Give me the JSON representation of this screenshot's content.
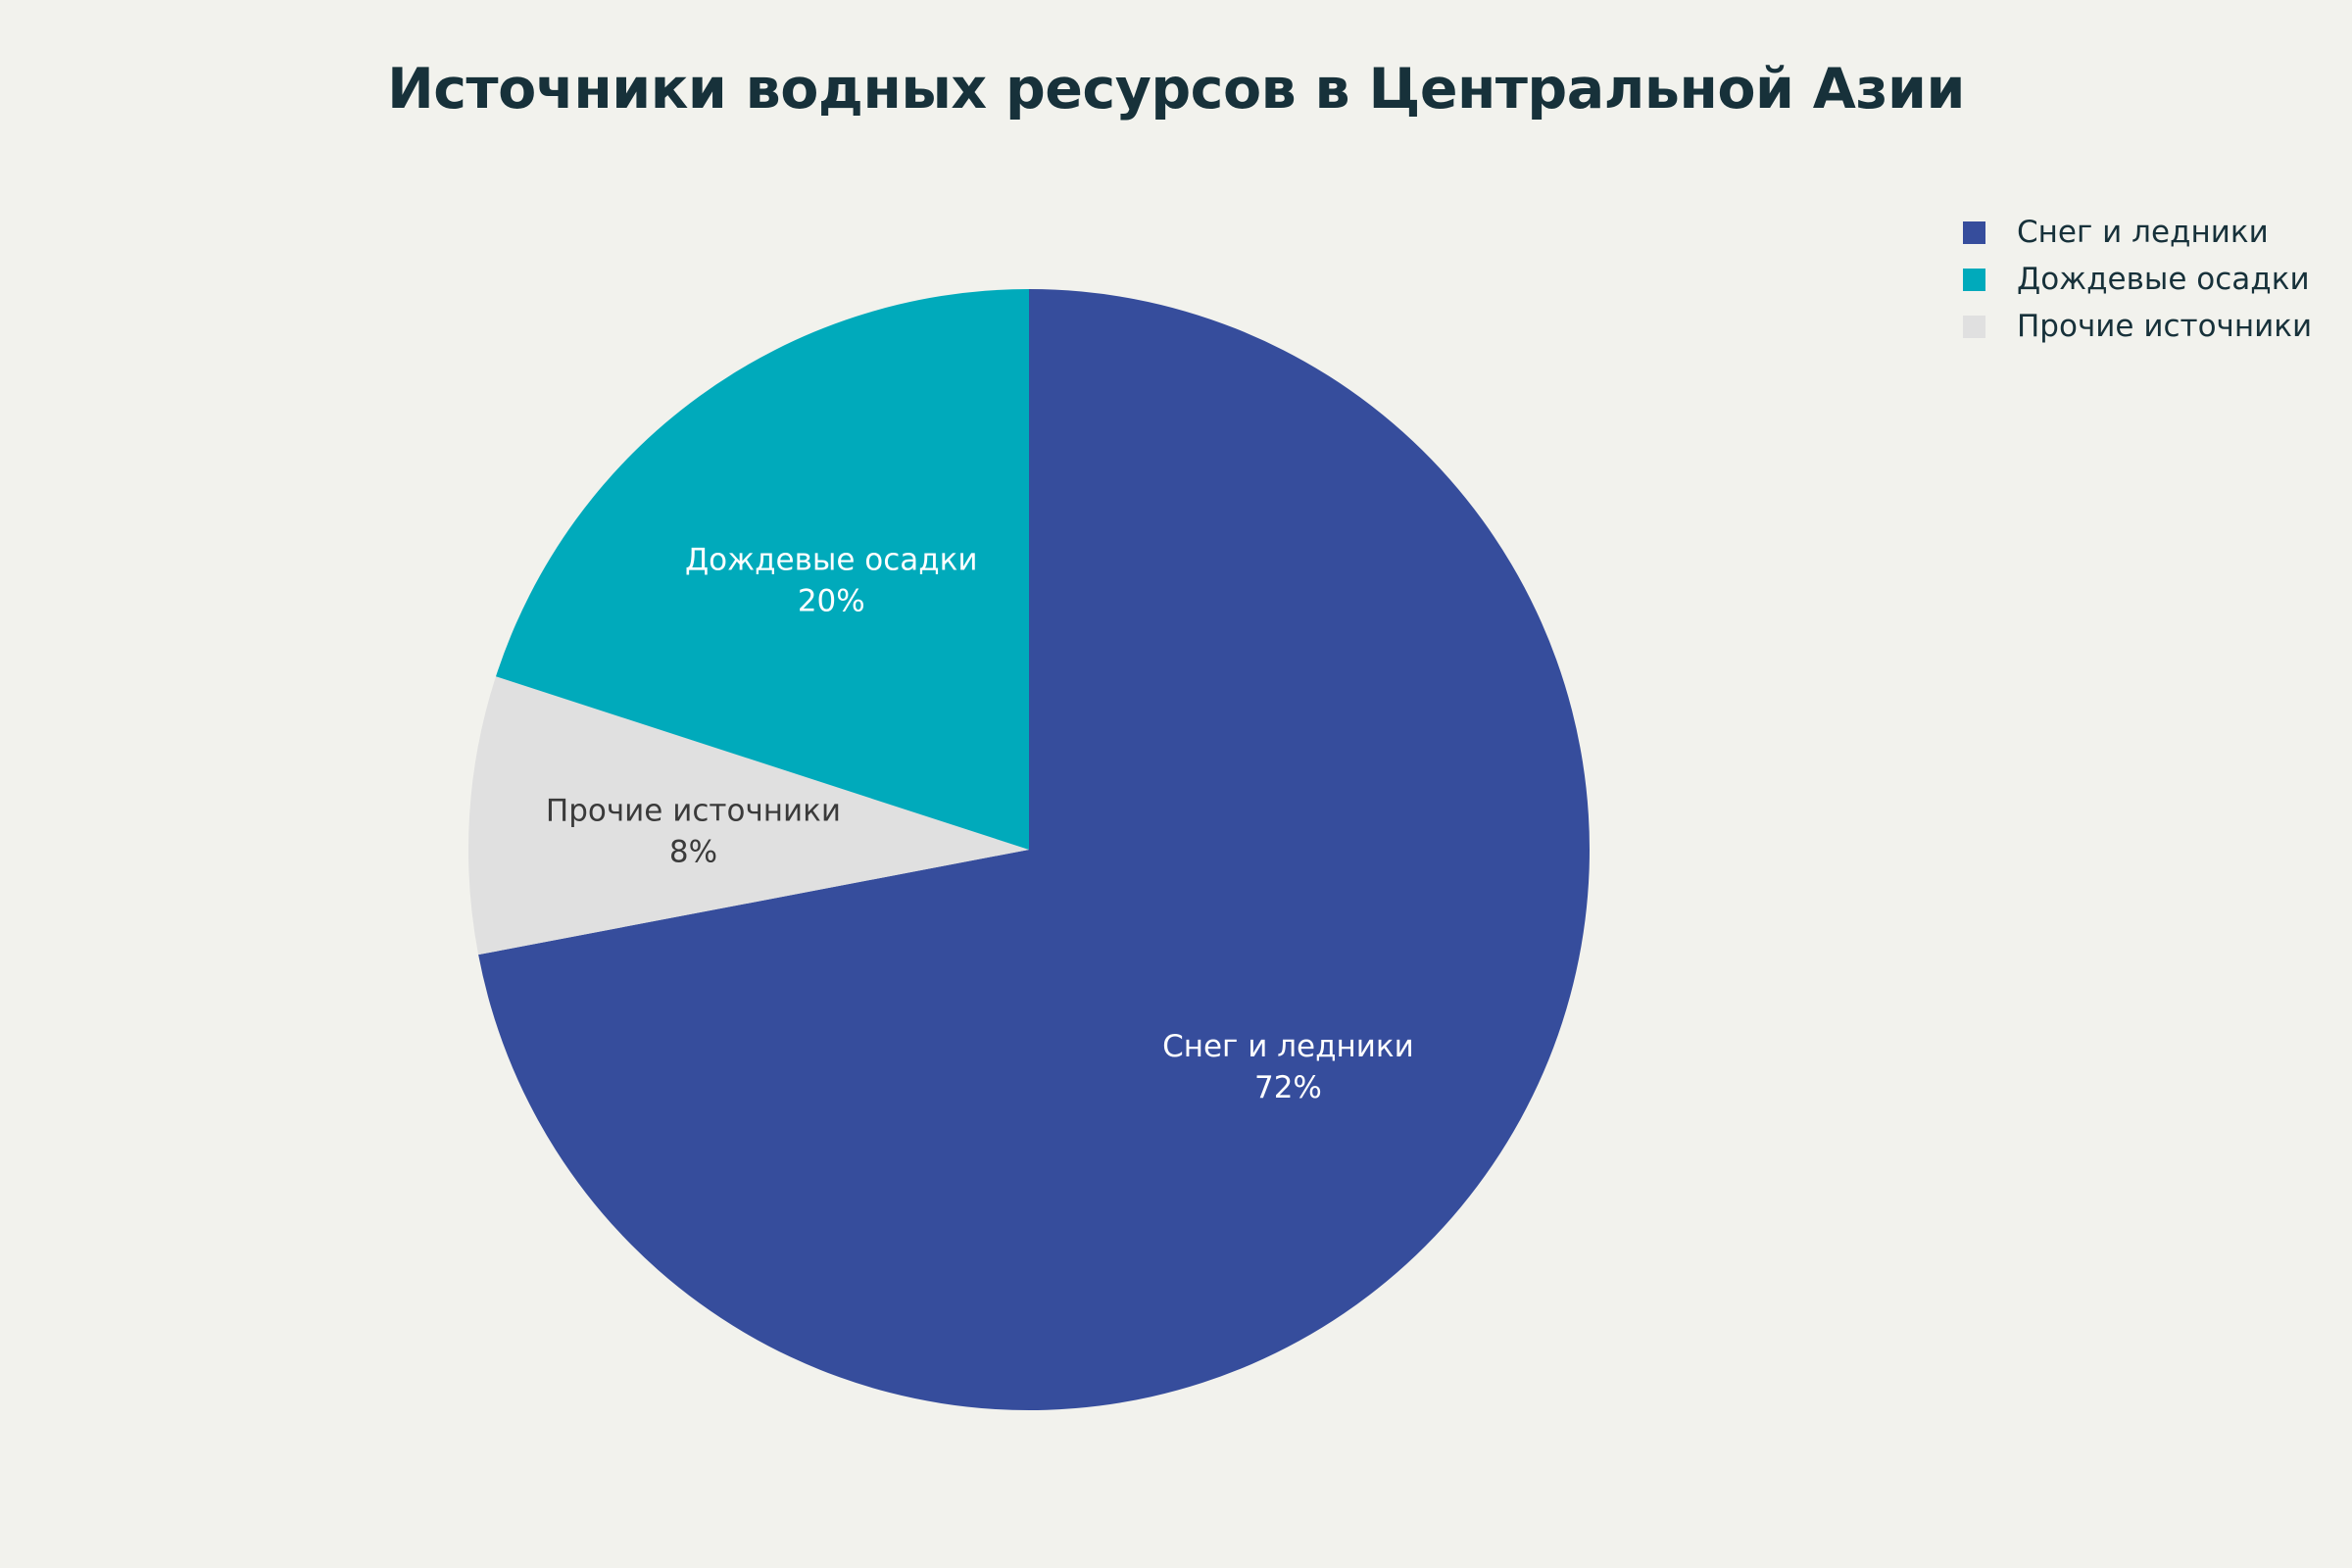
{
  "chart_data": {
    "type": "pie",
    "title": "Источники водных ресурсов в Центральной Азии",
    "slices": [
      {
        "label": "Снег и ледники",
        "value": 72,
        "percent_label": "72%",
        "color": "#364d9c",
        "text_color": "#ffffff"
      },
      {
        "label": "Прочие источники",
        "value": 8,
        "percent_label": "8%",
        "color": "#e0e0e0",
        "text_color": "#3a3a3a"
      },
      {
        "label": "Дождевые осадки",
        "value": 20,
        "percent_label": "20%",
        "color": "#00aabb",
        "text_color": "#ffffff"
      }
    ],
    "legend": {
      "position": "top-right",
      "items": [
        {
          "label": "Снег и ледники",
          "color": "#364d9c"
        },
        {
          "label": "Дождевые осадки",
          "color": "#00aabb"
        },
        {
          "label": "Прочие источники",
          "color": "#e0e0e0"
        }
      ]
    }
  }
}
